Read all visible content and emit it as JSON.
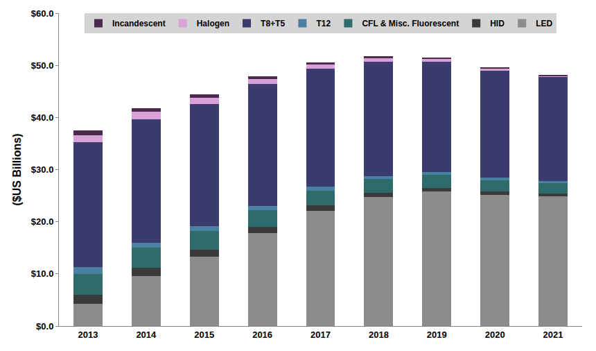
{
  "chart_data": {
    "type": "bar",
    "stacked": true,
    "y_label": "($US Billions)",
    "categories": [
      "2013",
      "2014",
      "2015",
      "2016",
      "2017",
      "2018",
      "2019",
      "2020",
      "2021"
    ],
    "series": [
      {
        "name": "LED",
        "color": "#8c8c8c",
        "values": [
          4.3,
          9.6,
          13.3,
          17.8,
          22.1,
          24.7,
          25.8,
          25.2,
          24.9
        ]
      },
      {
        "name": "HID",
        "color": "#3a3a3a",
        "values": [
          1.7,
          1.6,
          1.4,
          1.2,
          1.0,
          0.8,
          0.7,
          0.6,
          0.5
        ]
      },
      {
        "name": "CFL & Misc. Fluorescent",
        "color": "#2f6b6b",
        "values": [
          4.0,
          3.8,
          3.5,
          3.2,
          2.9,
          2.7,
          2.5,
          2.2,
          2.0
        ]
      },
      {
        "name": "T12",
        "color": "#4a80a2",
        "values": [
          1.3,
          1.0,
          1.0,
          0.8,
          0.8,
          0.6,
          0.6,
          0.5,
          0.4
        ]
      },
      {
        "name": "T8+T5",
        "color": "#3b3b6e",
        "values": [
          23.9,
          23.7,
          23.4,
          23.4,
          22.6,
          21.9,
          21.1,
          20.5,
          19.9
        ]
      },
      {
        "name": "Halogen",
        "color": "#d8a2d8",
        "values": [
          1.4,
          1.4,
          1.2,
          0.9,
          0.8,
          0.7,
          0.5,
          0.4,
          0.3
        ]
      },
      {
        "name": "Incandescent",
        "color": "#4b2a4e",
        "values": [
          0.9,
          0.7,
          0.6,
          0.6,
          0.4,
          0.3,
          0.3,
          0.2,
          0.2
        ]
      }
    ],
    "ylim": [
      0,
      60
    ],
    "yticks": [
      {
        "value": 0,
        "label": "$0.0"
      },
      {
        "value": 10,
        "label": "$10.0"
      },
      {
        "value": 20,
        "label": "$20.0"
      },
      {
        "value": 30,
        "label": "$30.0"
      },
      {
        "value": 40,
        "label": "$40.0"
      },
      {
        "value": 50,
        "label": "$50.0"
      },
      {
        "value": 60,
        "label": "$60.0"
      }
    ],
    "grid": false,
    "legend": "top"
  }
}
